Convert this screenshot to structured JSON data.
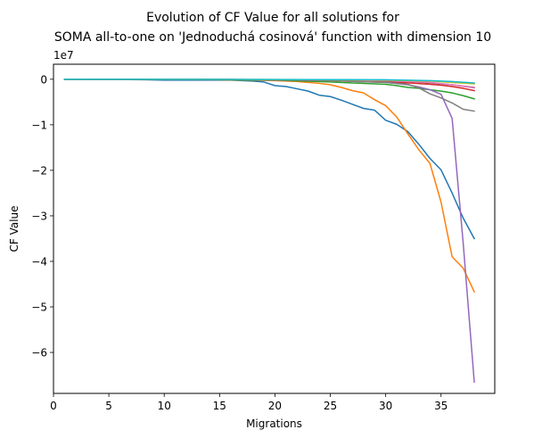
{
  "chart_data": {
    "type": "line",
    "title_line1": "Evolution of CF Value for all solutions for",
    "title_line2": "SOMA all-to-one on 'Jednoduchá cosinová' function with dimension 10",
    "xlabel": "Migrations",
    "ylabel": "CF Value",
    "y_scale_label": "1e7",
    "xlim": [
      0,
      39.85
    ],
    "ylim": [
      -69000000,
      3300000
    ],
    "xticks": [
      0,
      5,
      10,
      15,
      20,
      25,
      30,
      35
    ],
    "xtick_labels": [
      "0",
      "5",
      "10",
      "15",
      "20",
      "25",
      "30",
      "35"
    ],
    "yticks": [
      0,
      -10000000,
      -20000000,
      -30000000,
      -40000000,
      -50000000,
      -60000000
    ],
    "ytick_labels": [
      "0",
      "−1",
      "−2",
      "−3",
      "−4",
      "−5",
      "−6"
    ],
    "series": [
      {
        "color": "#1f77b4",
        "x": [
          1,
          3,
          5,
          8,
          10,
          12,
          14,
          16,
          17,
          18,
          19,
          20,
          21,
          22,
          23,
          24,
          25,
          26,
          27,
          28,
          29,
          30,
          31,
          32,
          33,
          34,
          35,
          36,
          37,
          38
        ],
        "values": [
          0,
          0,
          -50000,
          -100000,
          -200000,
          -200000,
          -200000,
          -200000,
          -300000,
          -400000,
          -600000,
          -1400000,
          -1600000,
          -2100000,
          -2600000,
          -3500000,
          -3800000,
          -4600000,
          -5500000,
          -6400000,
          -6800000,
          -9000000,
          -9900000,
          -11500000,
          -14300000,
          -17400000,
          -19900000,
          -25000000,
          -30500000,
          -35000000
        ]
      },
      {
        "color": "#ff7f0e",
        "x": [
          1,
          5,
          10,
          15,
          18,
          20,
          22,
          24,
          25,
          26,
          27,
          28,
          29,
          30,
          31,
          32,
          33,
          34,
          35,
          36,
          37,
          38
        ],
        "values": [
          0,
          0,
          -50000,
          -100000,
          -200000,
          -300000,
          -500000,
          -900000,
          -1200000,
          -1800000,
          -2500000,
          -3000000,
          -4500000,
          -5800000,
          -8300000,
          -12000000,
          -15500000,
          -18500000,
          -27000000,
          -39000000,
          -41500000,
          -46700000
        ]
      },
      {
        "color": "#2ca02c",
        "x": [
          1,
          10,
          20,
          25,
          28,
          30,
          31,
          32,
          33,
          34,
          35,
          36,
          37,
          38
        ],
        "values": [
          0,
          0,
          -200000,
          -600000,
          -900000,
          -1100000,
          -1400000,
          -1800000,
          -2000000,
          -2300000,
          -2600000,
          -3000000,
          -3600000,
          -4300000
        ]
      },
      {
        "color": "#d62728",
        "x": [
          1,
          10,
          20,
          25,
          30,
          32,
          34,
          35,
          36,
          37,
          38
        ],
        "values": [
          0,
          0,
          -100000,
          -300000,
          -600000,
          -800000,
          -1100000,
          -1300000,
          -1600000,
          -2000000,
          -2500000
        ]
      },
      {
        "color": "#9467bd",
        "x": [
          1,
          10,
          20,
          25,
          30,
          32,
          33,
          34,
          35,
          36,
          37,
          38
        ],
        "values": [
          0,
          0,
          -100000,
          -300000,
          -700000,
          -1200000,
          -1700000,
          -2300000,
          -3300000,
          -8600000,
          -36000000,
          -66500000
        ]
      },
      {
        "color": "#8c564b",
        "x": [
          1,
          10,
          20,
          25,
          30,
          32,
          34,
          36,
          38
        ],
        "values": [
          0,
          0,
          -100000,
          -200000,
          -400000,
          -500000,
          -800000,
          -1200000,
          -1800000
        ]
      },
      {
        "color": "#e377c2",
        "x": [
          1,
          10,
          20,
          25,
          30,
          32,
          34,
          36,
          38
        ],
        "values": [
          0,
          0,
          -100000,
          -200000,
          -300000,
          -500000,
          -700000,
          -1200000,
          -1900000
        ]
      },
      {
        "color": "#7f7f7f",
        "x": [
          1,
          10,
          20,
          25,
          30,
          32,
          33,
          34,
          35,
          36,
          37,
          38
        ],
        "values": [
          0,
          0,
          -100000,
          -300000,
          -700000,
          -1100000,
          -1900000,
          -3200000,
          -4100000,
          -5200000,
          -6600000,
          -7000000
        ]
      },
      {
        "color": "#bcbd22",
        "x": [
          1,
          10,
          20,
          30,
          34,
          36,
          38
        ],
        "values": [
          0,
          0,
          -50000,
          -200000,
          -400000,
          -700000,
          -1000000
        ]
      },
      {
        "color": "#17becf",
        "x": [
          1,
          10,
          20,
          30,
          34,
          36,
          38
        ],
        "values": [
          0,
          0,
          -50000,
          -100000,
          -300000,
          -500000,
          -800000
        ]
      }
    ]
  }
}
